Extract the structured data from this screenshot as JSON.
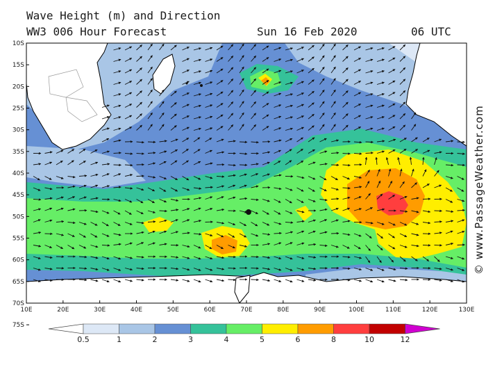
{
  "title_line1": "Wave Height (m) and Direction",
  "title_line2": "WW3 006 Hour Forecast",
  "date": "Sun 16 Feb 2020",
  "time": "06 UTC",
  "credit": "© www.PassageWeather.com",
  "lat_labels": [
    "10S",
    "15S",
    "20S",
    "25S",
    "30S",
    "35S",
    "40S",
    "45S",
    "50S",
    "55S",
    "60S",
    "65S",
    "70S",
    "75S"
  ],
  "lon_labels": [
    "10E",
    "20E",
    "30E",
    "40E",
    "50E",
    "60E",
    "70E",
    "80E",
    "90E",
    "100E",
    "110E",
    "120E",
    "130E"
  ],
  "colorbar": {
    "labels": [
      "0.5",
      "1",
      "2",
      "3",
      "4",
      "5",
      "6",
      "8",
      "10",
      "12"
    ],
    "colors": [
      "#ffffff",
      "#dde8f6",
      "#a9c6e6",
      "#6690d4",
      "#35c29a",
      "#66ee66",
      "#ffee00",
      "#ff9c00",
      "#ff3e3e",
      "#c20000",
      "#d000d0"
    ]
  },
  "regions": {
    "land": "#ffffff",
    "sea_base": "#6690d4"
  }
}
